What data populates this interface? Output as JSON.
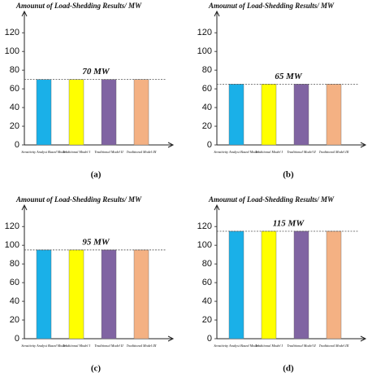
{
  "chart_data": [
    {
      "type": "bar",
      "title": "Amounut of Load-Shedding Results/ MW",
      "annotation": "70 MW",
      "caption": "(a)",
      "categories": [
        "Sensitivity Analysi Based Model",
        "Traditional Model I",
        "Traditional Model II",
        "Traditional Model III"
      ],
      "values": [
        70,
        70,
        70,
        70
      ],
      "colors": [
        "#1ab0e8",
        "#ffff00",
        "#8064a2",
        "#f4b183"
      ],
      "ylim": [
        0,
        135
      ],
      "yticks": [
        0,
        20,
        40,
        60,
        80,
        100,
        120
      ]
    },
    {
      "type": "bar",
      "title": "Amounut of Load-Shedding Results/ MW",
      "annotation": "65 MW",
      "caption": "(b)",
      "categories": [
        "Sensitivity Analysi Based Model",
        "Traditional Model I",
        "Traditional Model II",
        "Traditional Model III"
      ],
      "values": [
        65,
        65,
        65,
        65
      ],
      "colors": [
        "#1ab0e8",
        "#ffff00",
        "#8064a2",
        "#f4b183"
      ],
      "ylim": [
        0,
        135
      ],
      "yticks": [
        0,
        20,
        40,
        60,
        80,
        100,
        120
      ]
    },
    {
      "type": "bar",
      "title": "Amounut of Load-Shedding Results/ MW",
      "annotation": "95 MW",
      "caption": "(c)",
      "categories": [
        "Sensitivity Analysi Based Model",
        "Traditional Model I",
        "Traditional Model II",
        "Traditional Model III"
      ],
      "values": [
        95,
        95,
        95,
        95
      ],
      "colors": [
        "#1ab0e8",
        "#ffff00",
        "#8064a2",
        "#f4b183"
      ],
      "ylim": [
        0,
        135
      ],
      "yticks": [
        0,
        20,
        40,
        60,
        80,
        100,
        120
      ]
    },
    {
      "type": "bar",
      "title": "Amounut of Load-Shedding Results/ MW",
      "annotation": "115 MW",
      "caption": "(d)",
      "categories": [
        "Sensitivity Analysi Based Model",
        "Traditional Model I",
        "Traditional Model II",
        "Traditional Model III"
      ],
      "values": [
        115,
        115,
        115,
        115
      ],
      "colors": [
        "#1ab0e8",
        "#ffff00",
        "#8064a2",
        "#f4b183"
      ],
      "ylim": [
        0,
        135
      ],
      "yticks": [
        0,
        20,
        40,
        60,
        80,
        100,
        120
      ]
    }
  ]
}
